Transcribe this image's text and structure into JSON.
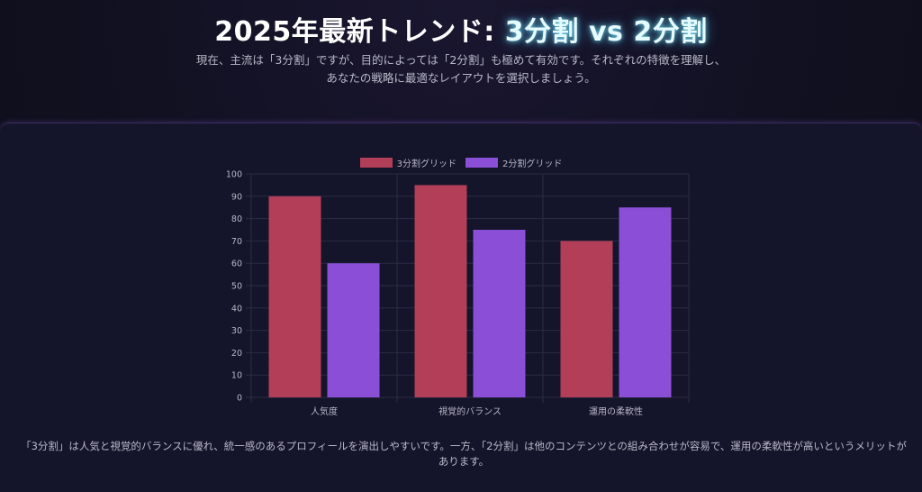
{
  "header": {
    "title_prefix": "2025年最新トレンド: ",
    "title_accent": "3分割 vs 2分割",
    "subtitle": "現在、主流は「3分割」ですが、目的によっては「2分割」も極めて有効です。それぞれの特徴を理解し、あなたの戦略に最適なレイアウトを選択しましょう。"
  },
  "footer": {
    "text": "「3分割」は人気と視覚的バランスに優れ、統一感のあるプロフィールを演出しやすいです。一方、「2分割」は他のコンテンツとの組み合わせが容易で、運用の柔軟性が高いというメリットがあります。"
  },
  "colors": {
    "series_1": "#b23f57",
    "series_2": "#8a4fd6",
    "grid": "#2b2b45",
    "tick_text": "#b8b8c8"
  },
  "chart_data": {
    "type": "bar",
    "categories": [
      "人気度",
      "視覚的バランス",
      "運用の柔軟性"
    ],
    "series": [
      {
        "name": "3分割グリッド",
        "values": [
          90,
          95,
          70
        ]
      },
      {
        "name": "2分割グリッド",
        "values": [
          60,
          75,
          85
        ]
      }
    ],
    "ylim": [
      0,
      100
    ],
    "yticks": [
      0,
      10,
      20,
      30,
      40,
      50,
      60,
      70,
      80,
      90,
      100
    ],
    "grid": true,
    "legend": "top-center",
    "xlabel": "",
    "ylabel": ""
  }
}
